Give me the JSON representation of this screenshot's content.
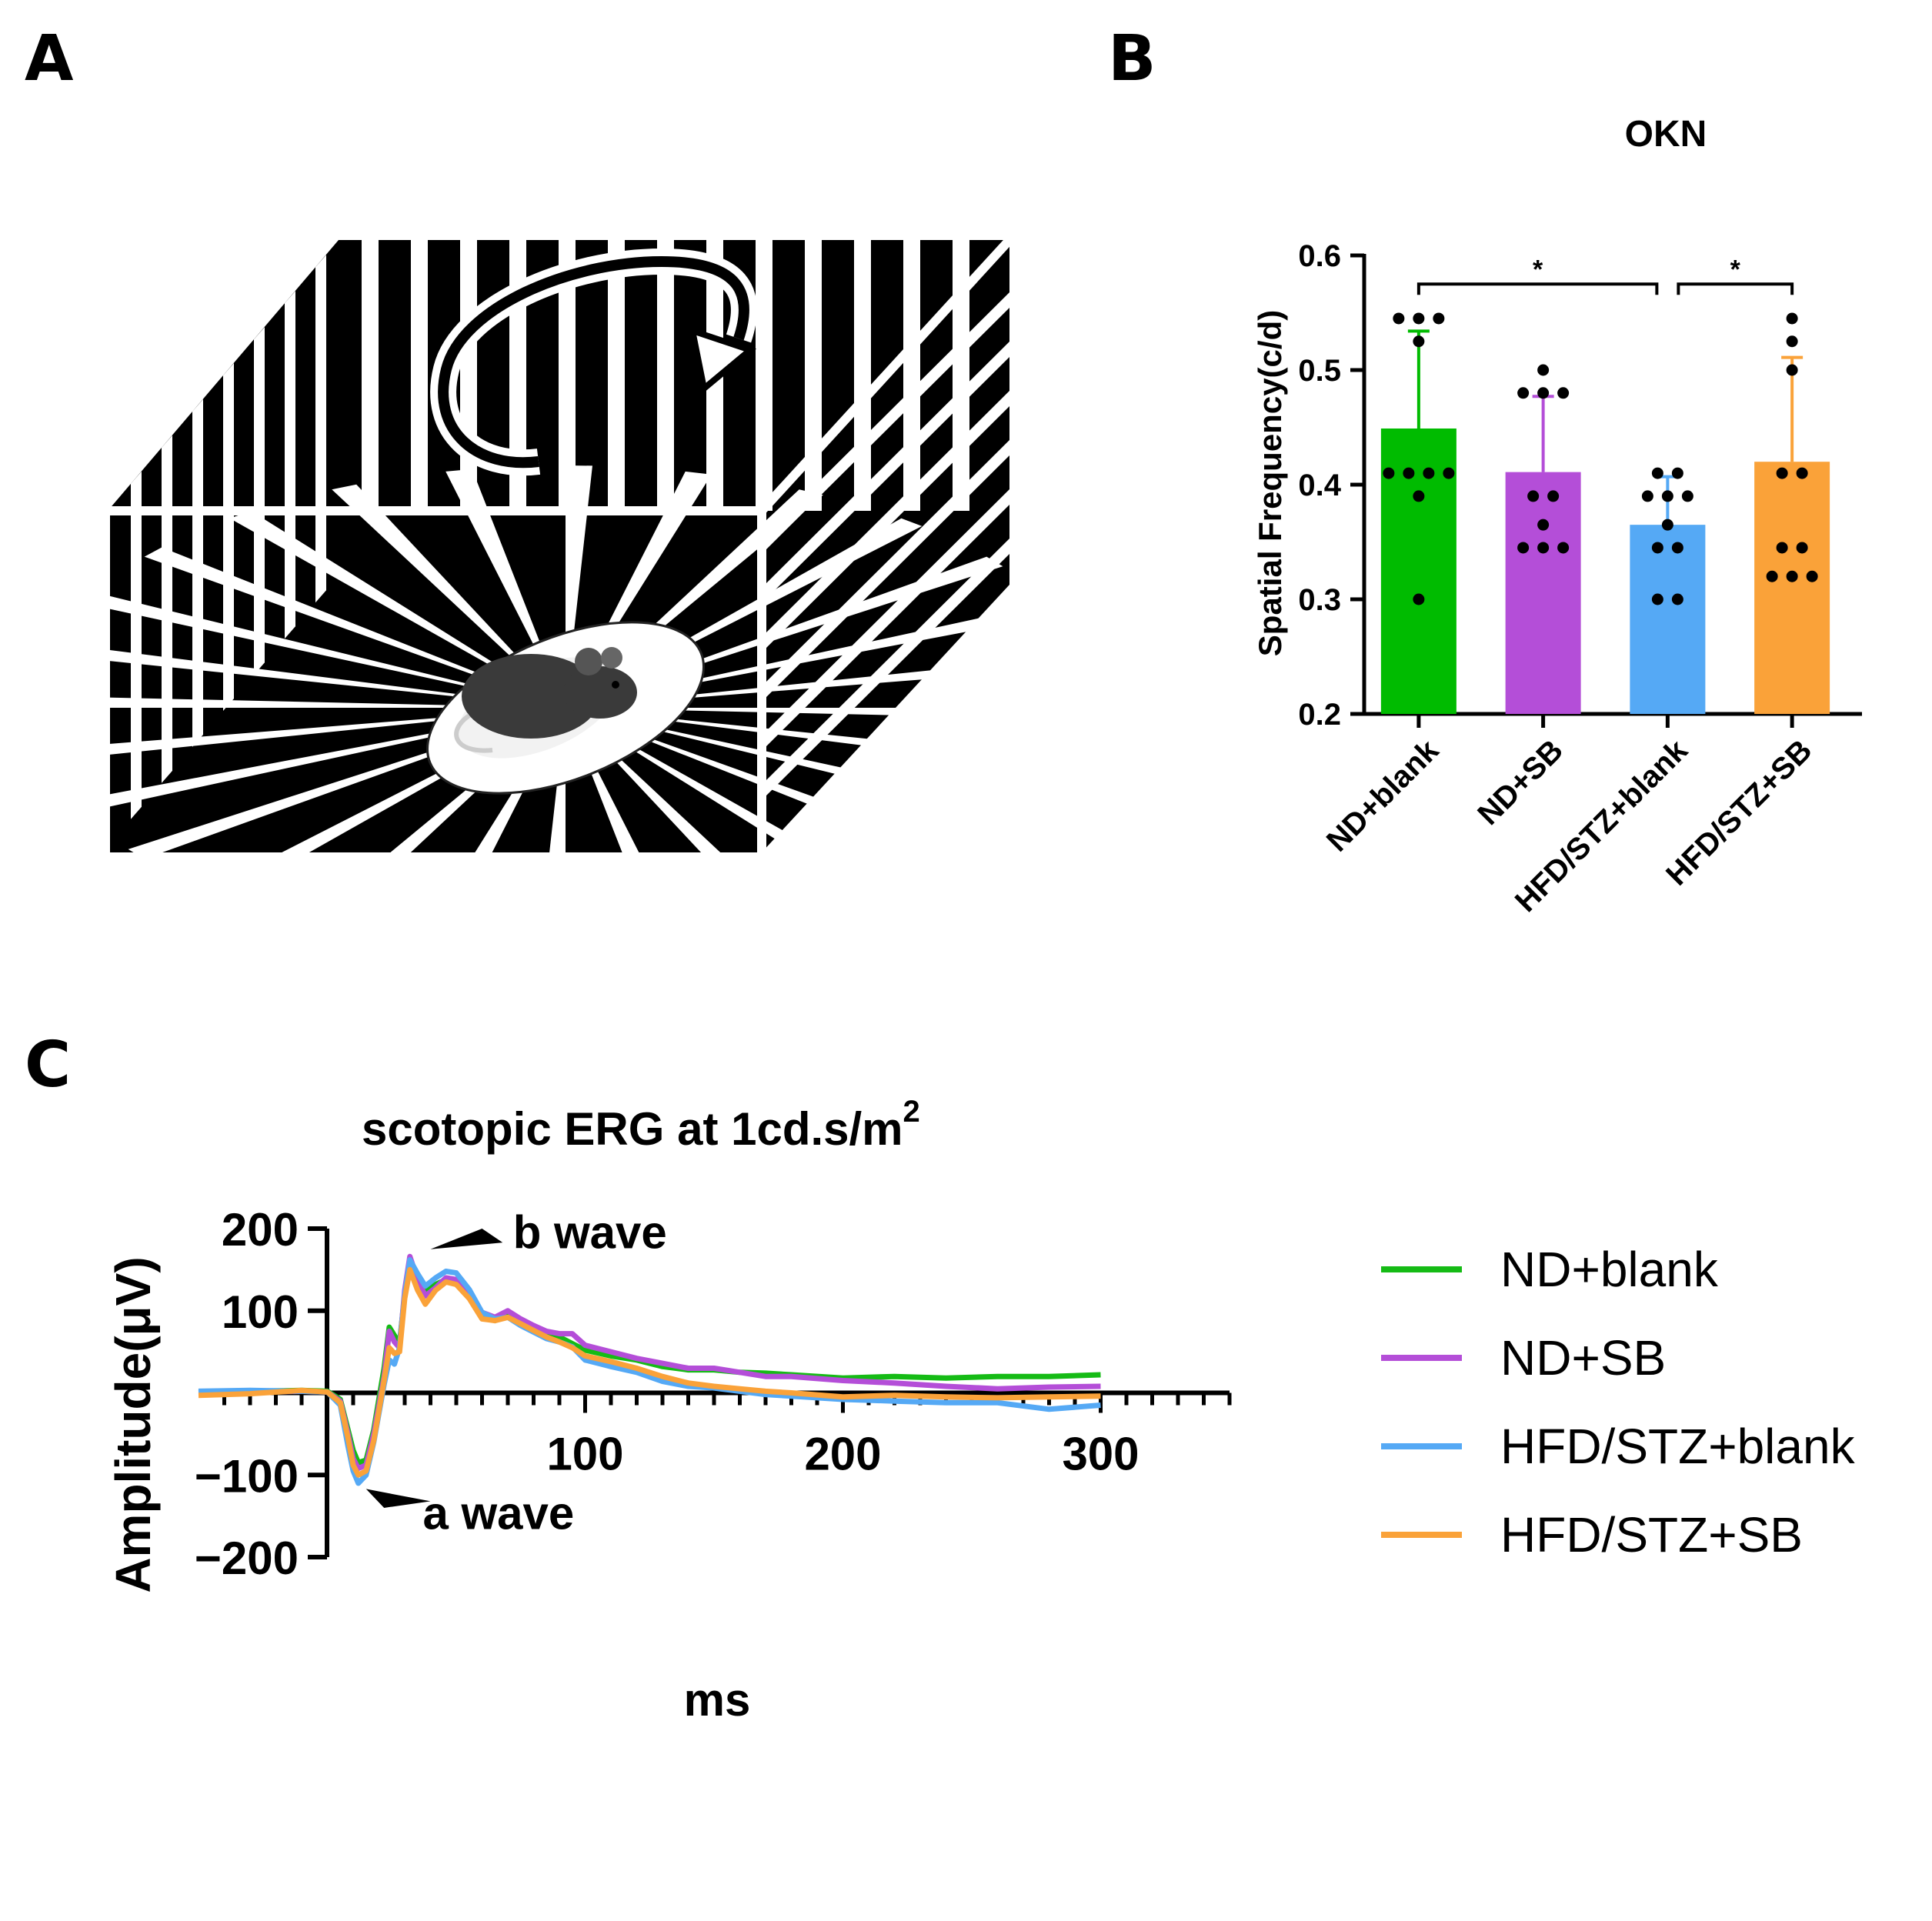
{
  "panels": {
    "a": {
      "letter": "A"
    },
    "b": {
      "letter": "B"
    },
    "c": {
      "letter": "C"
    }
  },
  "chart_data": [
    {
      "type": "bar",
      "panel": "B",
      "title": "OKN",
      "xlabel": "",
      "ylabel": "Spatial Frequency(c/d)",
      "ylim": [
        0.2,
        0.6
      ],
      "yticks": [
        "0.2",
        "0.3",
        "0.4",
        "0.5",
        "0.6"
      ],
      "categories": [
        "ND+blank",
        "ND+SB",
        "HFD/STZ+blank",
        "HFD/STZ+SB"
      ],
      "values": [
        0.449,
        0.411,
        0.365,
        0.42
      ],
      "errors": [
        0.085,
        0.066,
        0.042,
        0.091
      ],
      "colors": [
        "#00bb00",
        "#b44ed8",
        "#55a9f5",
        "#faa239"
      ],
      "points": [
        [
          0.545,
          0.545,
          0.545,
          0.525,
          0.41,
          0.41,
          0.41,
          0.41,
          0.39,
          0.3
        ],
        [
          0.5,
          0.48,
          0.48,
          0.48,
          0.39,
          0.39,
          0.365,
          0.345,
          0.345,
          0.345
        ],
        [
          0.41,
          0.41,
          0.39,
          0.39,
          0.39,
          0.365,
          0.345,
          0.345,
          0.3,
          0.3
        ],
        [
          0.545,
          0.525,
          0.5,
          0.41,
          0.41,
          0.345,
          0.345,
          0.32,
          0.32,
          0.32
        ]
      ],
      "significance": [
        {
          "from": 0,
          "to": 2,
          "label": "*"
        },
        {
          "from": 2,
          "to": 3,
          "label": "*"
        }
      ]
    },
    {
      "type": "line",
      "panel": "C",
      "title": "scotopic ERG  at 1cd.s/m",
      "title_superscript": "2",
      "xlabel": "ms",
      "ylabel": "Amplitude(μV)",
      "xlim": [
        -50,
        350
      ],
      "ylim": [
        -200,
        200
      ],
      "xticks": [
        "100",
        "200",
        "300"
      ],
      "yticks": [
        "200",
        "100",
        "−100",
        "−200"
      ],
      "annotations": [
        {
          "text": "b wave",
          "x": 44,
          "y": 168
        },
        {
          "text": "a wave",
          "x": 20,
          "y": -108
        }
      ],
      "series": [
        {
          "name": "ND+blank",
          "color": "#15bb15",
          "x": [
            -50,
            -30,
            -10,
            0,
            5,
            8,
            10,
            12,
            15,
            18,
            22,
            24,
            26,
            28,
            30,
            32,
            35,
            38,
            42,
            46,
            50,
            55,
            60,
            65,
            70,
            75,
            80,
            85,
            90,
            95,
            100,
            110,
            120,
            130,
            140,
            150,
            160,
            170,
            180,
            200,
            220,
            240,
            260,
            280,
            300
          ],
          "y": [
            1,
            2,
            3,
            2,
            -8,
            -45,
            -70,
            -85,
            -82,
            -45,
            30,
            80,
            70,
            60,
            120,
            158,
            140,
            125,
            132,
            138,
            135,
            118,
            95,
            88,
            95,
            85,
            78,
            70,
            68,
            60,
            52,
            45,
            40,
            32,
            28,
            28,
            25,
            24,
            22,
            18,
            20,
            18,
            20,
            20,
            22
          ]
        },
        {
          "name": "ND+SB",
          "color": "#b44ed8",
          "x": [
            -50,
            -30,
            -10,
            0,
            5,
            8,
            10,
            12,
            15,
            18,
            22,
            24,
            26,
            28,
            30,
            32,
            35,
            38,
            42,
            46,
            50,
            55,
            60,
            65,
            70,
            75,
            80,
            85,
            90,
            95,
            100,
            110,
            120,
            130,
            140,
            150,
            160,
            170,
            180,
            200,
            220,
            240,
            260,
            280,
            300
          ],
          "y": [
            0,
            1,
            2,
            1,
            -10,
            -50,
            -80,
            -92,
            -88,
            -50,
            20,
            75,
            62,
            55,
            125,
            166,
            138,
            118,
            128,
            140,
            138,
            118,
            98,
            92,
            100,
            90,
            82,
            75,
            72,
            72,
            58,
            50,
            42,
            36,
            30,
            30,
            25,
            20,
            20,
            15,
            12,
            8,
            5,
            7,
            8
          ]
        },
        {
          "name": "HFD/STZ+blank",
          "color": "#55a9f5",
          "x": [
            -50,
            -30,
            -10,
            0,
            5,
            8,
            10,
            12,
            15,
            18,
            22,
            24,
            26,
            28,
            30,
            32,
            35,
            38,
            42,
            46,
            50,
            55,
            60,
            65,
            70,
            75,
            80,
            85,
            90,
            95,
            100,
            110,
            120,
            130,
            140,
            150,
            160,
            170,
            180,
            200,
            220,
            240,
            260,
            280,
            300
          ],
          "y": [
            2,
            3,
            2,
            1,
            -15,
            -65,
            -95,
            -110,
            -100,
            -60,
            10,
            40,
            35,
            55,
            120,
            162,
            145,
            130,
            140,
            148,
            146,
            126,
            98,
            90,
            92,
            82,
            74,
            66,
            62,
            56,
            40,
            32,
            25,
            14,
            8,
            6,
            2,
            -2,
            -4,
            -8,
            -10,
            -12,
            -12,
            -20,
            -15
          ]
        },
        {
          "name": "HFD/STZ+SB",
          "color": "#faa239",
          "x": [
            -50,
            -30,
            -10,
            0,
            5,
            8,
            10,
            12,
            15,
            18,
            22,
            24,
            26,
            28,
            30,
            32,
            35,
            38,
            42,
            46,
            50,
            55,
            60,
            65,
            70,
            75,
            80,
            85,
            90,
            95,
            100,
            110,
            120,
            130,
            140,
            150,
            160,
            170,
            180,
            200,
            220,
            240,
            260,
            280,
            300
          ],
          "y": [
            -3,
            -1,
            3,
            1,
            -12,
            -55,
            -88,
            -100,
            -95,
            -58,
            15,
            55,
            48,
            50,
            115,
            150,
            125,
            108,
            125,
            135,
            132,
            115,
            90,
            88,
            92,
            84,
            76,
            68,
            62,
            55,
            45,
            38,
            30,
            20,
            12,
            8,
            5,
            2,
            0,
            -5,
            -3,
            -5,
            -6,
            -5,
            -4
          ]
        }
      ]
    }
  ]
}
